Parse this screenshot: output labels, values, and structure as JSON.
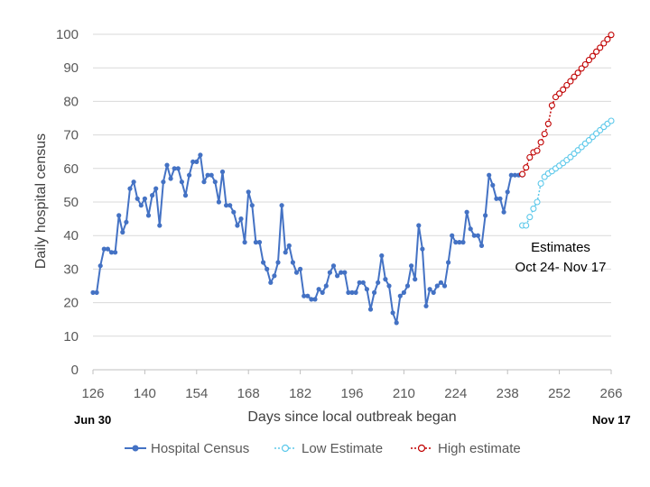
{
  "chart_data": {
    "type": "line",
    "title": "",
    "xlabel": "Days since local outbreak began",
    "ylabel": "Daily hospital census",
    "xlim": [
      126,
      266
    ],
    "ylim": [
      0,
      100
    ],
    "x_ticks": [
      126,
      140,
      154,
      168,
      182,
      196,
      210,
      224,
      238,
      252,
      266
    ],
    "y_ticks": [
      0,
      10,
      20,
      30,
      40,
      50,
      60,
      70,
      80,
      90,
      100
    ],
    "grid": "horizontal",
    "legend_position": "bottom",
    "x_start_label": "Jun 30",
    "x_end_label": "Nov 17",
    "annotation": {
      "line1": "Estimates",
      "line2": "Oct 24- Nov 17"
    },
    "series": [
      {
        "name": "Hospital Census",
        "color": "#4472c4",
        "style": "solid-filled",
        "x": [
          126,
          127,
          128,
          129,
          130,
          131,
          132,
          133,
          134,
          135,
          136,
          137,
          138,
          139,
          140,
          141,
          142,
          143,
          144,
          145,
          146,
          147,
          148,
          149,
          150,
          151,
          152,
          153,
          154,
          155,
          156,
          157,
          158,
          159,
          160,
          161,
          162,
          163,
          164,
          165,
          166,
          167,
          168,
          169,
          170,
          171,
          172,
          173,
          174,
          175,
          176,
          177,
          178,
          179,
          180,
          181,
          182,
          183,
          184,
          185,
          186,
          187,
          188,
          189,
          190,
          191,
          192,
          193,
          194,
          195,
          196,
          197,
          198,
          199,
          200,
          201,
          202,
          203,
          204,
          205,
          206,
          207,
          208,
          209,
          210,
          211,
          212,
          213,
          214,
          215,
          216,
          217,
          218,
          219,
          220,
          221,
          222,
          223,
          224,
          225,
          226,
          227,
          228,
          229,
          230,
          231,
          232,
          233,
          234,
          235,
          236,
          237,
          238,
          239,
          240,
          241,
          242
        ],
        "y": [
          23,
          23,
          31,
          36,
          36,
          35,
          35,
          46,
          41,
          44,
          54,
          56,
          51,
          49,
          51,
          46,
          52,
          54,
          43,
          56,
          61,
          57,
          60,
          60,
          56,
          52,
          58,
          62,
          62,
          64,
          56,
          58,
          58,
          56,
          50,
          59,
          49,
          49,
          47,
          43,
          45,
          38,
          53,
          49,
          38,
          38,
          32,
          30,
          26,
          28,
          32,
          49,
          35,
          37,
          32,
          29,
          30,
          22,
          22,
          21,
          21,
          24,
          23,
          25,
          29,
          31,
          28,
          29,
          29,
          23,
          23,
          23,
          26,
          26,
          24,
          18,
          23,
          26,
          34,
          27,
          25,
          17,
          14,
          22,
          23,
          25,
          31,
          27,
          43,
          36,
          19,
          24,
          23,
          25,
          26,
          25,
          32,
          40,
          38,
          38,
          38,
          47,
          42,
          40,
          40,
          37,
          46,
          58,
          55,
          51,
          51,
          47,
          53,
          58,
          58,
          58,
          58
        ]
      },
      {
        "name": "Low Estimate",
        "color": "#5bc8ea",
        "style": "dotted-open",
        "x": [
          242,
          243,
          244,
          245,
          246,
          247,
          248,
          249,
          250,
          251,
          252,
          253,
          254,
          255,
          256,
          257,
          258,
          259,
          260,
          261,
          262,
          263,
          264,
          265,
          266
        ],
        "y": [
          43,
          43,
          45.5,
          48,
          50,
          55.5,
          57.5,
          58.5,
          59.2,
          60,
          60.8,
          61.6,
          62.5,
          63.4,
          64.4,
          65.4,
          66.4,
          67.4,
          68.4,
          69.4,
          70.4,
          71.4,
          72.4,
          73.3,
          74.2
        ]
      },
      {
        "name": "High estimate",
        "color": "#c00000",
        "style": "dotted-open",
        "x": [
          242,
          243,
          244,
          245,
          246,
          247,
          248,
          249,
          250,
          251,
          252,
          253,
          254,
          255,
          256,
          257,
          258,
          259,
          260,
          261,
          262,
          263,
          264,
          265,
          266
        ],
        "y": [
          58.3,
          60.3,
          63.3,
          64.8,
          65.3,
          67.8,
          70.3,
          73.3,
          78.8,
          81.3,
          82.3,
          83.5,
          84.8,
          86,
          87.3,
          88.5,
          89.8,
          91,
          92.3,
          93.5,
          94.8,
          96,
          97.3,
          98.5,
          99.8
        ]
      }
    ]
  }
}
